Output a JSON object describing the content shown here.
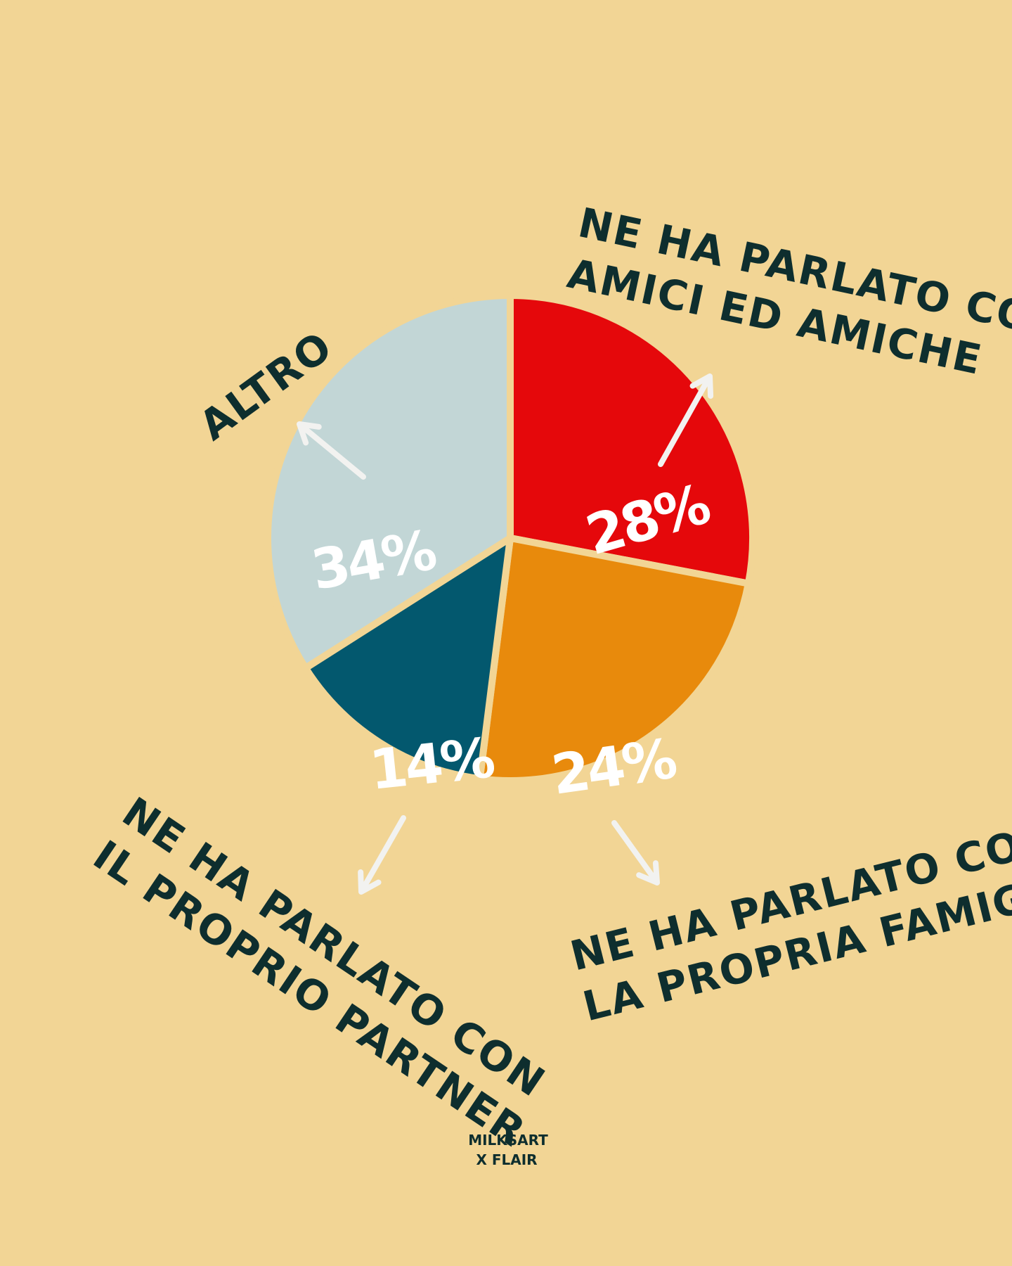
{
  "chart_data": {
    "type": "pie",
    "slices": [
      {
        "label": "NE HA PARLATO CON AMICI ED AMICHE",
        "lines": [
          "NE HA PARLATO CON",
          "AMICI ED AMICHE"
        ],
        "value": 28,
        "display": "28%",
        "color": "#E5080B"
      },
      {
        "label": "NE HA PARLATO CON LA PROPRIA FAMIGLIA",
        "lines": [
          "NE HA PARLATO CON",
          "LA PROPRIA FAMIGLIA"
        ],
        "value": 24,
        "display": "24%",
        "color": "#E88A0C"
      },
      {
        "label": "NE HA PARLATO CON IL PROPRIO PARTNER",
        "lines": [
          "NE HA PARLATO CON",
          "IL PROPRIO PARTNER"
        ],
        "value": 14,
        "display": "14%",
        "color": "#03586E"
      },
      {
        "label": "ALTRO",
        "lines": [
          "ALTRO"
        ],
        "value": 34,
        "display": "34%",
        "color": "#C2D6D6"
      }
    ],
    "start_angle_deg": 0,
    "direction": "clockwise"
  },
  "credit": {
    "line1": "MILKSART",
    "line2": "X FLAIR"
  },
  "colors": {
    "background": "#F2D595",
    "text": "#0E2E2E",
    "arrow": "#F2F2F0",
    "percent_text": "#FFFFFF"
  }
}
